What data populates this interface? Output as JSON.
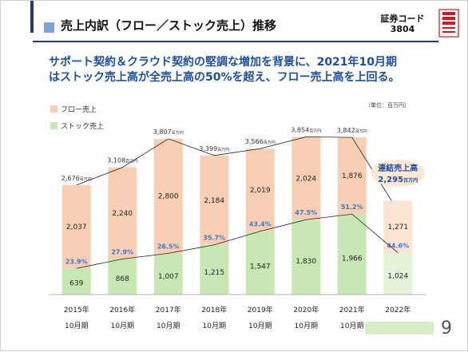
{
  "header": {
    "title": "売上内訳（フロー／ストック売上）推移",
    "stock_code_label": "証券コード",
    "stock_code": "3804"
  },
  "headline": {
    "line1": "サポート契約＆クラウド契約の堅調な増加を背景に、2021年10月期",
    "line2": "はストック売上高が全売上高の50%を超え、フロー売上高を上回る。"
  },
  "page_number": "9",
  "colors": {
    "flow": "#f8cfb4",
    "stock": "#c9e7b4",
    "flow_2022": "#fbe4d4",
    "stock_2022": "#e3f2d8",
    "ratio_text": "#3a78c9",
    "callout_bg": "#fde8d8",
    "callout_text": "#1f4e9a",
    "line": "#222222"
  },
  "chart_data": {
    "type": "bar",
    "stacked": true,
    "unit_note": "（単位：百万円）",
    "categories": [
      "2015年\n10月期",
      "2016年\n10月期",
      "2017年\n10月期",
      "2018年\n10月期",
      "2019年\n10月期",
      "2020年\n10月期",
      "2021年\n10月期",
      "2022年\n10月期2Q"
    ],
    "series": [
      {
        "name": "ストック売上",
        "values": [
          639,
          868,
          1007,
          1215,
          1547,
          1830,
          1966,
          1024
        ]
      },
      {
        "name": "フロー売上",
        "values": [
          2037,
          2240,
          2800,
          2184,
          2019,
          2024,
          1876,
          1271
        ]
      }
    ],
    "totals": [
      2676,
      3108,
      3807,
      3399,
      3566,
      3854,
      3842,
      null
    ],
    "total_suffix": "百万円",
    "stock_ratio_labels": [
      "23.9%",
      "27.9%",
      "26.5%",
      "35.7%",
      "43.4%",
      "47.5%",
      "51.2%",
      "44.6%"
    ],
    "callout": {
      "line1": "連結売上高",
      "value": "2,295",
      "unit": "百万円"
    },
    "legend": [
      "フロー売上",
      "ストック売上"
    ],
    "legend_position": "top-left",
    "ylim": [
      0,
      4000
    ],
    "grid": false
  }
}
